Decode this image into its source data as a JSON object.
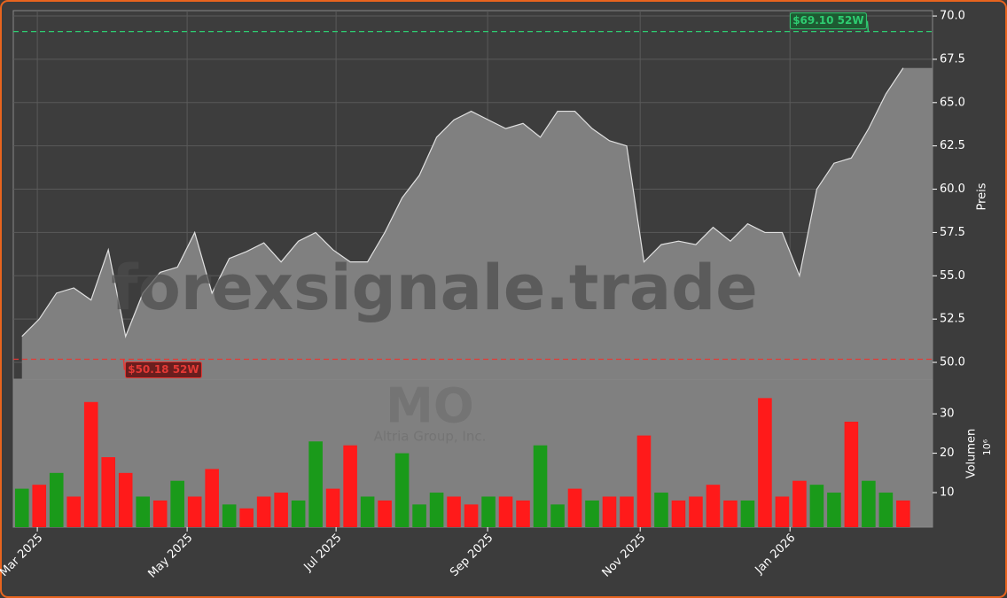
{
  "chart_data": [
    {
      "type": "area",
      "name": "price",
      "color": "#808080",
      "line_color": "#e0e0e0",
      "watermark": "forexsignale.trade",
      "ticker": "MO",
      "company": "Altria Group, Inc.",
      "y_label": "Preis",
      "x": [
        0.5,
        1.5,
        2.5,
        3.5,
        4.5,
        5.5,
        6.5,
        7.5,
        8.5,
        9.5,
        10.5,
        11.5,
        12.5,
        13.5,
        14.5,
        15.5,
        16.5,
        17.5,
        18.5,
        19.5,
        20.5,
        21.5,
        22.5,
        23.5,
        24.5,
        25.5,
        26.5,
        27.5,
        28.5,
        29.5,
        30.5,
        31.5,
        32.5,
        33.5,
        34.5,
        35.5,
        36.5,
        37.5,
        38.5,
        39.5,
        40.5,
        41.5,
        42.5,
        43.5,
        44.5,
        45.5,
        46.5,
        47.5,
        48.5,
        49.5,
        50.5,
        51.5
      ],
      "values": [
        51.5,
        52.5,
        54.0,
        54.3,
        53.6,
        56.5,
        51.5,
        54.0,
        55.2,
        55.5,
        57.5,
        54.0,
        56.0,
        56.4,
        56.9,
        55.8,
        57.0,
        57.5,
        56.5,
        55.8,
        55.8,
        57.5,
        59.5,
        60.8,
        63.0,
        64.0,
        64.5,
        64.0,
        63.5,
        63.8,
        63.0,
        64.5,
        64.5,
        63.5,
        62.8,
        62.5,
        55.8,
        56.8,
        57.0,
        56.8,
        57.8,
        57.0,
        58.0,
        57.5,
        57.5,
        55.0,
        60.0,
        61.5,
        61.8,
        63.5,
        65.5,
        67.0
      ],
      "xlim": [
        0,
        53.2
      ],
      "ylim": [
        49.03,
        70.31
      ],
      "yticks": [
        {
          "value": 50,
          "label": "50.0"
        },
        {
          "value": 52.5,
          "label": "52.5"
        },
        {
          "value": 55,
          "label": "55.0"
        },
        {
          "value": 57.5,
          "label": "57.5"
        },
        {
          "value": 60,
          "label": "60.0"
        },
        {
          "value": 62.5,
          "label": "62.5"
        },
        {
          "value": 65,
          "label": "65.0"
        },
        {
          "value": 67.5,
          "label": "67.5"
        },
        {
          "value": 70,
          "label": "70.0"
        }
      ],
      "grid": true,
      "high": {
        "value": 69.1,
        "label": "$69.10 52W",
        "color": "#2ecc71"
      },
      "low": {
        "value": 50.18,
        "label": "$50.18 52W",
        "color": "#e53935"
      }
    },
    {
      "type": "bar",
      "name": "volume",
      "y_label": "Volumen",
      "y_exponent": "10⁶",
      "values": [
        11,
        12,
        15,
        9,
        33,
        19,
        15,
        9,
        8,
        13,
        9,
        16,
        7,
        6,
        9,
        10,
        8,
        23,
        11,
        22,
        9,
        8,
        20,
        7,
        10,
        9,
        7,
        9,
        9,
        8,
        22,
        7,
        11,
        8,
        9,
        9,
        24.5,
        10,
        8,
        9,
        12,
        8,
        8,
        34,
        9,
        13,
        12,
        10,
        28,
        13,
        10,
        8
      ],
      "colors": [
        "#1a9a1a",
        "#ff1a1a",
        "#1a9a1a",
        "#ff1a1a",
        "#ff1a1a",
        "#ff1a1a",
        "#ff1a1a",
        "#1a9a1a",
        "#ff1a1a",
        "#1a9a1a",
        "#ff1a1a",
        "#ff1a1a",
        "#1a9a1a",
        "#ff1a1a",
        "#ff1a1a",
        "#ff1a1a",
        "#1a9a1a",
        "#1a9a1a",
        "#ff1a1a",
        "#ff1a1a",
        "#1a9a1a",
        "#ff1a1a",
        "#1a9a1a",
        "#1a9a1a",
        "#1a9a1a",
        "#ff1a1a",
        "#ff1a1a",
        "#1a9a1a",
        "#ff1a1a",
        "#ff1a1a",
        "#1a9a1a",
        "#1a9a1a",
        "#ff1a1a",
        "#1a9a1a",
        "#ff1a1a",
        "#ff1a1a",
        "#ff1a1a",
        "#1a9a1a",
        "#ff1a1a",
        "#ff1a1a",
        "#ff1a1a",
        "#ff1a1a",
        "#1a9a1a",
        "#ff1a1a",
        "#ff1a1a",
        "#ff1a1a",
        "#1a9a1a",
        "#1a9a1a",
        "#ff1a1a",
        "#1a9a1a",
        "#1a9a1a",
        "#ff1a1a"
      ],
      "ylim": [
        1.24,
        38.8
      ],
      "yticks": [
        10,
        20,
        30
      ],
      "xticks": [
        {
          "value": 1.39,
          "label": "Mar 2025"
        },
        {
          "value": 10.06,
          "label": "May 2025"
        },
        {
          "value": 18.68,
          "label": "Jul 2025"
        },
        {
          "value": 27.45,
          "label": "Sep 2025"
        },
        {
          "value": 36.28,
          "label": "Nov 2025"
        },
        {
          "value": 44.95,
          "label": "Jan 2026"
        }
      ]
    }
  ]
}
